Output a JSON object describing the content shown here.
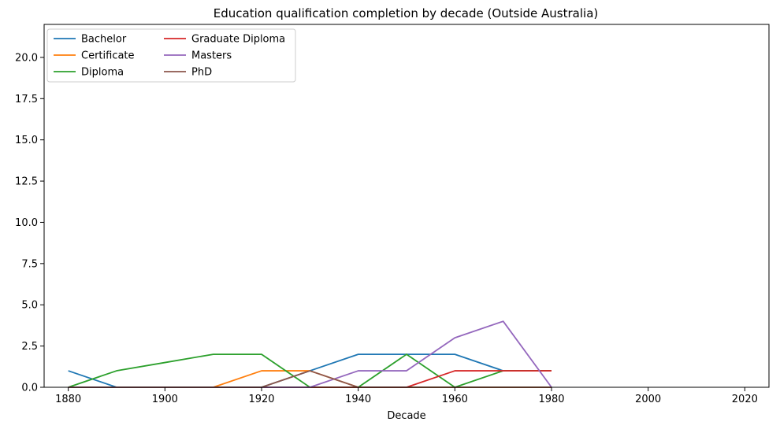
{
  "chart_data": {
    "type": "line",
    "title": "Education qualification completion by decade (Outside Australia)",
    "xlabel": "Decade",
    "ylabel": "",
    "xlim": [
      1875,
      2025
    ],
    "ylim": [
      0,
      22
    ],
    "xticks": [
      1880,
      1900,
      1920,
      1940,
      1960,
      1980,
      2000,
      2020
    ],
    "yticks": [
      0.0,
      2.5,
      5.0,
      7.5,
      10.0,
      12.5,
      15.0,
      17.5,
      20.0
    ],
    "xtick_labels": [
      "1880",
      "1900",
      "1920",
      "1940",
      "1960",
      "1980",
      "2000",
      "2020"
    ],
    "ytick_labels": [
      "0.0",
      "2.5",
      "5.0",
      "7.5",
      "10.0",
      "12.5",
      "15.0",
      "17.5",
      "20.0"
    ],
    "grid": false,
    "legend": "top-left",
    "x": [
      1880,
      1890,
      1900,
      1910,
      1920,
      1930,
      1940,
      1950,
      1960,
      1970,
      1980
    ],
    "series": [
      {
        "name": "Bachelor",
        "color": "#1f77b4",
        "values": [
          1,
          0,
          0,
          0,
          0,
          1,
          2,
          2,
          2,
          1,
          1
        ]
      },
      {
        "name": "Certificate",
        "color": "#ff7f0e",
        "values": [
          0,
          0,
          0,
          0,
          1,
          1,
          0,
          0,
          0,
          0,
          0
        ]
      },
      {
        "name": "Diploma",
        "color": "#2ca02c",
        "values": [
          0,
          1,
          1.5,
          2,
          2,
          0,
          0,
          2,
          0,
          1,
          1
        ]
      },
      {
        "name": "Graduate Diploma",
        "color": "#d62728",
        "values": [
          0,
          0,
          0,
          0,
          0,
          0,
          0,
          0,
          1,
          1,
          1
        ]
      },
      {
        "name": "Masters",
        "color": "#9467bd",
        "values": [
          0,
          0,
          0,
          0,
          0,
          0,
          1,
          1,
          3,
          4,
          0
        ]
      },
      {
        "name": "PhD",
        "color": "#8c564b",
        "values": [
          0,
          0,
          0,
          0,
          0,
          1,
          0,
          0,
          0,
          0,
          0
        ]
      }
    ]
  }
}
